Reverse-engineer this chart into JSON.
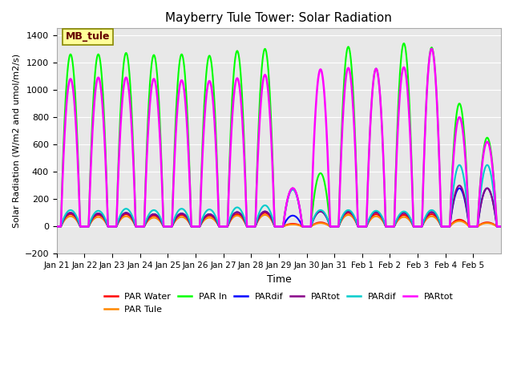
{
  "title": "Mayberry Tule Tower: Solar Radiation",
  "ylabel": "Solar Radiation (W/m2 and umol/m2/s)",
  "xlabel": "Time",
  "ylim": [
    -200,
    1450
  ],
  "yticks": [
    -200,
    0,
    200,
    400,
    600,
    800,
    1000,
    1200,
    1400
  ],
  "bg_color": "#e8e8e8",
  "legend_label": "MB_tule",
  "x_tick_labels": [
    "Jan 21",
    "Jan 22",
    "Jan 23",
    "Jan 24",
    "Jan 25",
    "Jan 26",
    "Jan 27",
    "Jan 28",
    "Jan 29",
    "Jan 30",
    "Jan 31",
    "Feb 1",
    "Feb 2",
    "Feb 3",
    "Feb 4",
    "Feb 5"
  ],
  "n_days": 16,
  "series_PAR_In_color": "#00ff00",
  "series_PAR_Water_color": "#ff0000",
  "series_PAR_Tule_color": "#ff8800",
  "series_PARdif_blue_color": "#0000ff",
  "series_PARtot_purple_color": "#880088",
  "series_PARdif_cyan_color": "#00cccc",
  "series_PARtot_magenta_color": "#ff00ff",
  "par_in_peaks": [
    1260,
    1260,
    1270,
    1255,
    1260,
    1250,
    1285,
    1300,
    275,
    390,
    1315,
    1155,
    1340,
    1310,
    900,
    650
  ],
  "par_water_peaks": [
    90,
    85,
    90,
    80,
    85,
    80,
    90,
    100,
    20,
    30,
    100,
    90,
    85,
    90,
    50,
    30
  ],
  "par_tule_peaks": [
    75,
    70,
    75,
    65,
    70,
    65,
    80,
    85,
    15,
    25,
    85,
    75,
    70,
    75,
    40,
    25
  ],
  "pardif_blue_peaks": [
    100,
    95,
    100,
    90,
    95,
    90,
    105,
    110,
    80,
    110,
    110,
    105,
    100,
    105,
    280,
    280
  ],
  "partot_purple_peaks": [
    100,
    95,
    100,
    90,
    95,
    90,
    105,
    110,
    280,
    110,
    110,
    105,
    100,
    105,
    300,
    280
  ],
  "pardif_cyan_peaks": [
    120,
    115,
    130,
    120,
    130,
    125,
    140,
    155,
    270,
    120,
    120,
    115,
    110,
    120,
    450,
    450
  ],
  "partot_magenta_peaks": [
    1080,
    1090,
    1090,
    1080,
    1070,
    1065,
    1085,
    1110,
    280,
    1150,
    1160,
    1155,
    1165,
    1300,
    800,
    620
  ],
  "legend_entries": [
    {
      "label": "PAR Water",
      "color": "#ff0000"
    },
    {
      "label": "PAR Tule",
      "color": "#ff8800"
    },
    {
      "label": "PAR In",
      "color": "#00ff00"
    },
    {
      "label": "PARdif",
      "color": "#0000ff"
    },
    {
      "label": "PARtot",
      "color": "#880088"
    },
    {
      "label": "PARdif",
      "color": "#00cccc"
    },
    {
      "label": "PARtot",
      "color": "#ff00ff"
    }
  ]
}
